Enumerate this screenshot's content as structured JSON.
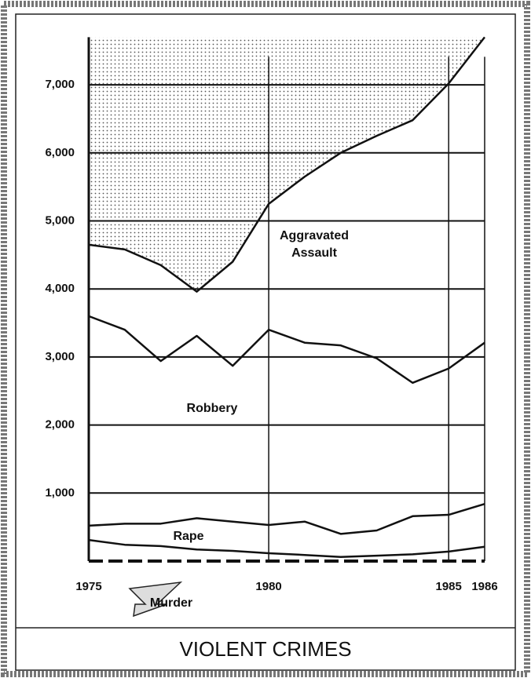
{
  "chart_data": {
    "type": "line",
    "title": "VIOLENT CRIMES",
    "x": [
      1975,
      1976,
      1977,
      1978,
      1979,
      1980,
      1981,
      1982,
      1983,
      1984,
      1985,
      1986
    ],
    "xlim": [
      1975,
      1986
    ],
    "xticks": [
      1975,
      1980,
      1985,
      1986
    ],
    "ylim": [
      0,
      7700
    ],
    "yticks": [
      {
        "value": 1000,
        "label": "1,000"
      },
      {
        "value": 2000,
        "label": "2,000"
      },
      {
        "value": 3000,
        "label": "3,000"
      },
      {
        "value": 4000,
        "label": "4,000"
      },
      {
        "value": 5000,
        "label": "5,000"
      },
      {
        "value": 6000,
        "label": "6,000"
      },
      {
        "value": 7000,
        "label": "7,000"
      }
    ],
    "grid": true,
    "series": [
      {
        "name": "Aggravated Assault",
        "color": "#111111",
        "values": [
          4650,
          4580,
          4350,
          3960,
          4400,
          5250,
          5650,
          6000,
          6250,
          6480,
          7020,
          7700
        ]
      },
      {
        "name": "Robbery",
        "color": "#111111",
        "values": [
          3600,
          3400,
          2940,
          3310,
          2870,
          3400,
          3210,
          3170,
          2980,
          2620,
          2830,
          3210
        ]
      },
      {
        "name": "Rape",
        "color": "#111111",
        "values": [
          520,
          550,
          550,
          630,
          580,
          530,
          580,
          400,
          450,
          660,
          680,
          840
        ]
      },
      {
        "name": "Murder",
        "color": "#111111",
        "values": [
          310,
          240,
          220,
          170,
          150,
          115,
          90,
          60,
          80,
          100,
          140,
          210
        ]
      }
    ]
  }
}
